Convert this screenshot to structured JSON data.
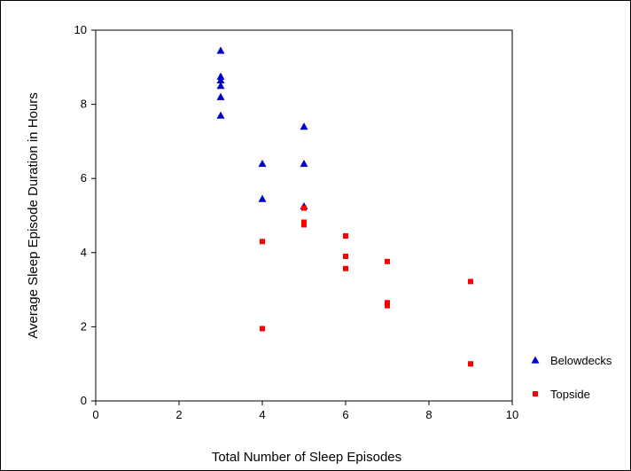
{
  "chart_data": {
    "type": "scatter",
    "title": "",
    "xlabel": "Total Number of Sleep Episodes",
    "ylabel": "Average Sleep Episode Duration in Hours",
    "xlim": [
      0,
      10
    ],
    "ylim": [
      0,
      10
    ],
    "xticks": [
      "0",
      "2",
      "4",
      "6",
      "8",
      "10"
    ],
    "yticks": [
      "0",
      "2",
      "4",
      "6",
      "8",
      "10"
    ],
    "grid": false,
    "legend_position": "right",
    "series": [
      {
        "name": "Belowdecks",
        "marker": "triangle",
        "color": "#0000cc",
        "points": [
          {
            "x": 3,
            "y": 9.45
          },
          {
            "x": 3,
            "y": 8.75
          },
          {
            "x": 3,
            "y": 8.65
          },
          {
            "x": 3,
            "y": 8.5
          },
          {
            "x": 3,
            "y": 8.2
          },
          {
            "x": 3,
            "y": 7.7
          },
          {
            "x": 4,
            "y": 6.4
          },
          {
            "x": 4,
            "y": 5.45
          },
          {
            "x": 5,
            "y": 7.4
          },
          {
            "x": 5,
            "y": 6.4
          },
          {
            "x": 5,
            "y": 5.25
          }
        ]
      },
      {
        "name": "Topside",
        "marker": "square",
        "color": "#ff0000",
        "points": [
          {
            "x": 4,
            "y": 4.3
          },
          {
            "x": 4,
            "y": 1.95
          },
          {
            "x": 5,
            "y": 5.2
          },
          {
            "x": 5,
            "y": 4.82
          },
          {
            "x": 5,
            "y": 4.75
          },
          {
            "x": 6,
            "y": 4.45
          },
          {
            "x": 6,
            "y": 3.9
          },
          {
            "x": 6,
            "y": 3.57
          },
          {
            "x": 7,
            "y": 3.76
          },
          {
            "x": 7,
            "y": 2.65
          },
          {
            "x": 7,
            "y": 2.57
          },
          {
            "x": 9,
            "y": 3.22
          },
          {
            "x": 9,
            "y": 1.0
          }
        ]
      }
    ]
  }
}
